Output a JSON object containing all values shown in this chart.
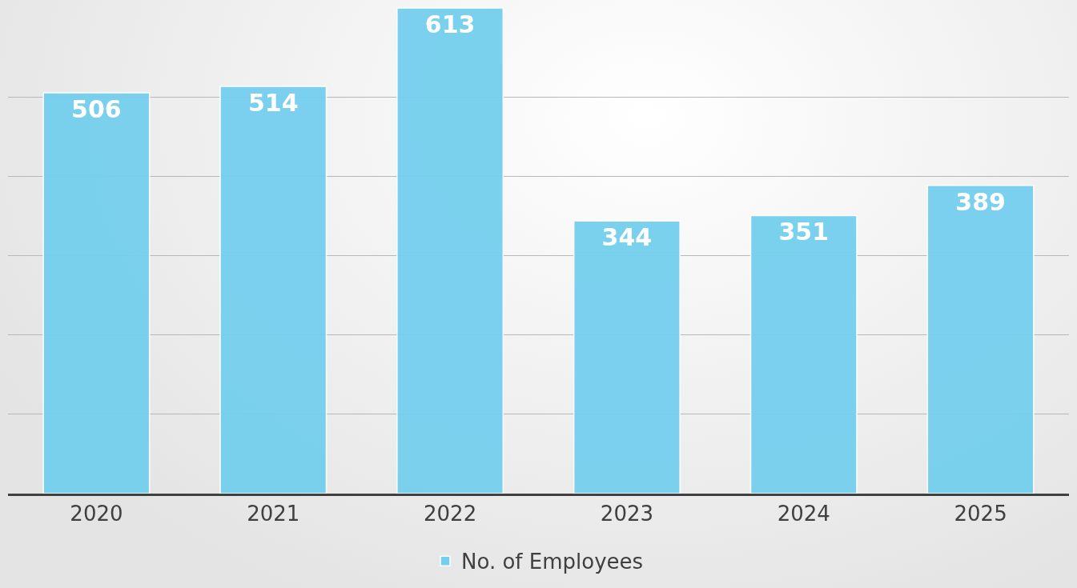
{
  "chart_data": {
    "type": "bar",
    "categories": [
      "2020",
      "2021",
      "2022",
      "2023",
      "2024",
      "2025"
    ],
    "series": [
      {
        "name": "No. of Employees",
        "color": "#74cfee",
        "values": [
          506,
          514,
          613,
          344,
          351,
          389
        ]
      }
    ],
    "data_labels": true,
    "ylim": [
      0,
      615
    ],
    "yticks": [
      {
        "value": 100,
        "label": null
      },
      {
        "value": 200,
        "label": null
      },
      {
        "value": 300,
        "label": null
      },
      {
        "value": 400,
        "label": null
      },
      {
        "value": 500,
        "label": null
      }
    ],
    "tick_labels": "x",
    "grid": "y",
    "legend": "bottom"
  }
}
